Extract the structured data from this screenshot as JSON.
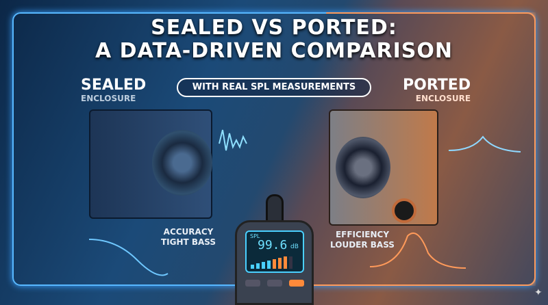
{
  "title_line1": "SEALED VS PORTED:",
  "title_line2": "A DATA-DRIVEN COMPARISON",
  "subtitle": "WITH REAL SPL MEASUREMENTS",
  "left": {
    "heading": "SEALED",
    "sub": "ENCLOSURE",
    "trait1": "ACCURACY",
    "trait2": "TIGHT BASS",
    "accent": "#3aa0ff"
  },
  "right": {
    "heading": "PORTED",
    "sub": "ENCLOSURE",
    "trait1": "EFFICIENCY",
    "trait2": "LOUDER BASS",
    "accent": "#ff8a3a"
  },
  "meter": {
    "label": "SPL",
    "reading": "99.6",
    "unit": "dB"
  }
}
